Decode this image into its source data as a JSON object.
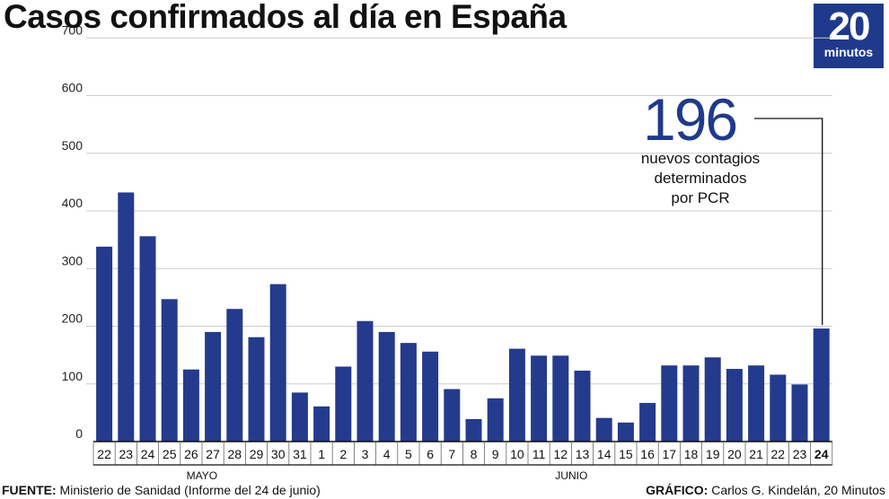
{
  "title": "Casos confirmados al día en España",
  "logo": {
    "number": "20",
    "word": "minutos"
  },
  "callout": {
    "value": "196",
    "line1": "nuevos contagios",
    "line2": "determinados",
    "line3": "por PCR"
  },
  "footer": {
    "source_label": "FUENTE:",
    "source_text": " Ministerio de Sanidad (Informe del 24 de junio)",
    "credit_label": "GRÁFICO:",
    "credit_text": " Carlos G. Kindelán, 20 Minutos"
  },
  "colors": {
    "bar": "#243a8c",
    "logo": "#1f3a8a",
    "grid": "#cccccc"
  },
  "chart_data": {
    "type": "bar",
    "title": "Casos confirmados al día en España",
    "categories": [
      "22",
      "23",
      "24",
      "25",
      "26",
      "27",
      "28",
      "29",
      "30",
      "31",
      "1",
      "2",
      "3",
      "4",
      "5",
      "6",
      "7",
      "8",
      "9",
      "10",
      "11",
      "12",
      "13",
      "14",
      "15",
      "16",
      "17",
      "18",
      "19",
      "20",
      "21",
      "22",
      "23",
      "24"
    ],
    "values": [
      338,
      432,
      356,
      247,
      125,
      190,
      230,
      181,
      273,
      85,
      61,
      130,
      209,
      190,
      171,
      156,
      91,
      39,
      75,
      161,
      149,
      149,
      123,
      41,
      33,
      67,
      132,
      132,
      146,
      126,
      132,
      116,
      99,
      196
    ],
    "month_labels": [
      {
        "label": "MAYO",
        "category_index": 4
      },
      {
        "label": "JUNIO",
        "category_index": 21
      }
    ],
    "ylim": [
      0,
      700
    ],
    "yticks": [
      0,
      100,
      200,
      300,
      400,
      500,
      600,
      700
    ],
    "grid": true,
    "highlight_index": 33
  }
}
